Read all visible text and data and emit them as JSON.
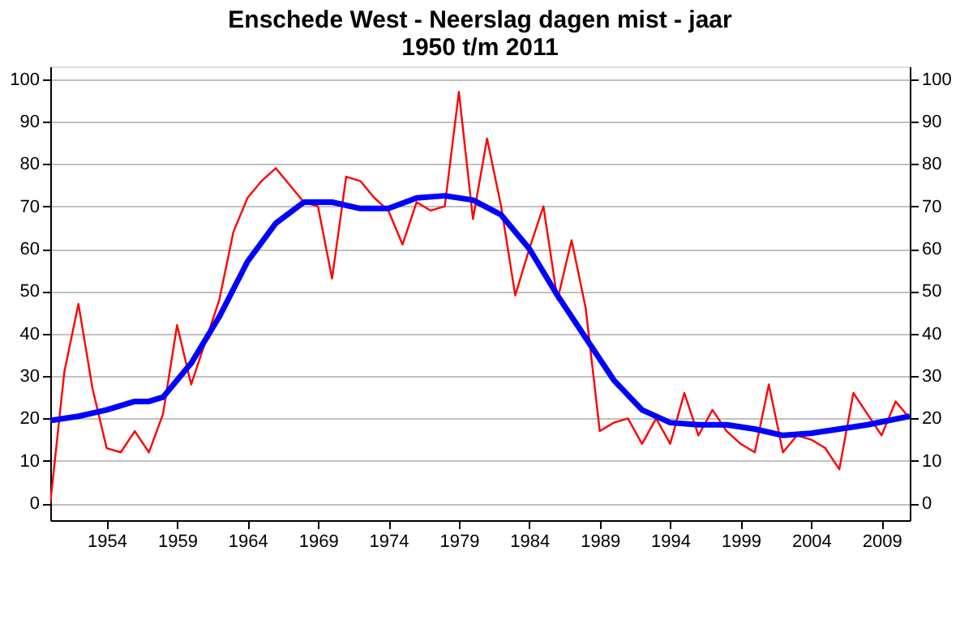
{
  "chart_data": {
    "type": "line",
    "title": [
      "Enschede West - Neerslag dagen mist - jaar",
      "1950 t/m 2011"
    ],
    "xlim": [
      1950,
      2011
    ],
    "xticks": [
      1954,
      1959,
      1964,
      1969,
      1974,
      1979,
      1984,
      1989,
      1994,
      1999,
      2004,
      2009
    ],
    "ylim": [
      -4,
      103
    ],
    "yticks": [
      0,
      10,
      20,
      30,
      40,
      50,
      60,
      70,
      80,
      90,
      100
    ],
    "y2lim": [
      -4,
      103
    ],
    "y2ticks": [
      0,
      10,
      20,
      30,
      40,
      50,
      60,
      70,
      80,
      90,
      100
    ],
    "grid": "y",
    "series": [
      {
        "color": "#ff0000",
        "x": [
          1950,
          1951,
          1952,
          1953,
          1954,
          1955,
          1956,
          1957,
          1958,
          1959,
          1960,
          1961,
          1962,
          1963,
          1964,
          1965,
          1966,
          1967,
          1968,
          1969,
          1970,
          1971,
          1972,
          1973,
          1974,
          1975,
          1976,
          1977,
          1978,
          1979,
          1980,
          1981,
          1982,
          1983,
          1984,
          1985,
          1986,
          1987,
          1988,
          1989,
          1990,
          1991,
          1992,
          1993,
          1994,
          1995,
          1996,
          1997,
          1998,
          1999,
          2000,
          2001,
          2002,
          2003,
          2004,
          2005,
          2006,
          2007,
          2008,
          2009,
          2010,
          2011
        ],
        "values": [
          0,
          31,
          47,
          27,
          13,
          12,
          17,
          12,
          21,
          42,
          28,
          38,
          48,
          64,
          72,
          76,
          79,
          75,
          71,
          70,
          53,
          77,
          76,
          72,
          69,
          61,
          71,
          69,
          70,
          97,
          67,
          86,
          70,
          49,
          60,
          70,
          48,
          62,
          46,
          17,
          19,
          20,
          14,
          20,
          14,
          26,
          16,
          22,
          17,
          14,
          12,
          28,
          12,
          16,
          15,
          13,
          8,
          26,
          21,
          16,
          24,
          20
        ]
      },
      {
        "color": "#0000ff",
        "axis": "y2",
        "x": [
          1950,
          1952,
          1954,
          1956,
          1957,
          1958,
          1960,
          1962,
          1964,
          1966,
          1968,
          1970,
          1972,
          1974,
          1976,
          1978,
          1980,
          1982,
          1984,
          1986,
          1988,
          1990,
          1992,
          1994,
          1996,
          1998,
          2000,
          2002,
          2004,
          2006,
          2008,
          2011
        ],
        "values": [
          19.5,
          20.5,
          22,
          24,
          24,
          25,
          33,
          44,
          57,
          66,
          71,
          71,
          69.5,
          69.5,
          72,
          72.5,
          71.5,
          68,
          60,
          49,
          39,
          29,
          22,
          19,
          18.5,
          18.5,
          17.5,
          16,
          16.5,
          17.5,
          18.5,
          20.5
        ]
      }
    ]
  }
}
